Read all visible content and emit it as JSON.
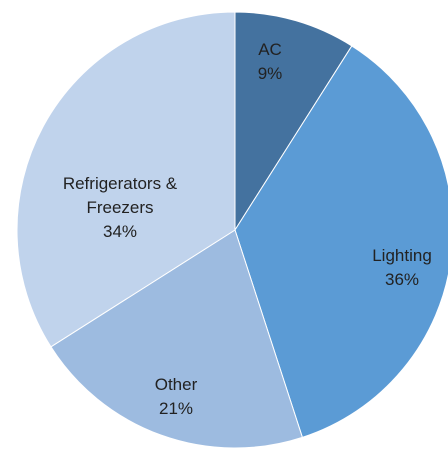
{
  "chart_data": {
    "type": "pie",
    "categories": [
      "AC",
      "Lighting",
      "Other",
      "Refrigerators & Freezers"
    ],
    "values": [
      9,
      36,
      21,
      34
    ],
    "value_labels": [
      "9%",
      "36%",
      "21%",
      "34%"
    ],
    "colors": [
      "#44729f",
      "#5b9bd5",
      "#9dbbe0",
      "#c0d3ec"
    ]
  }
}
